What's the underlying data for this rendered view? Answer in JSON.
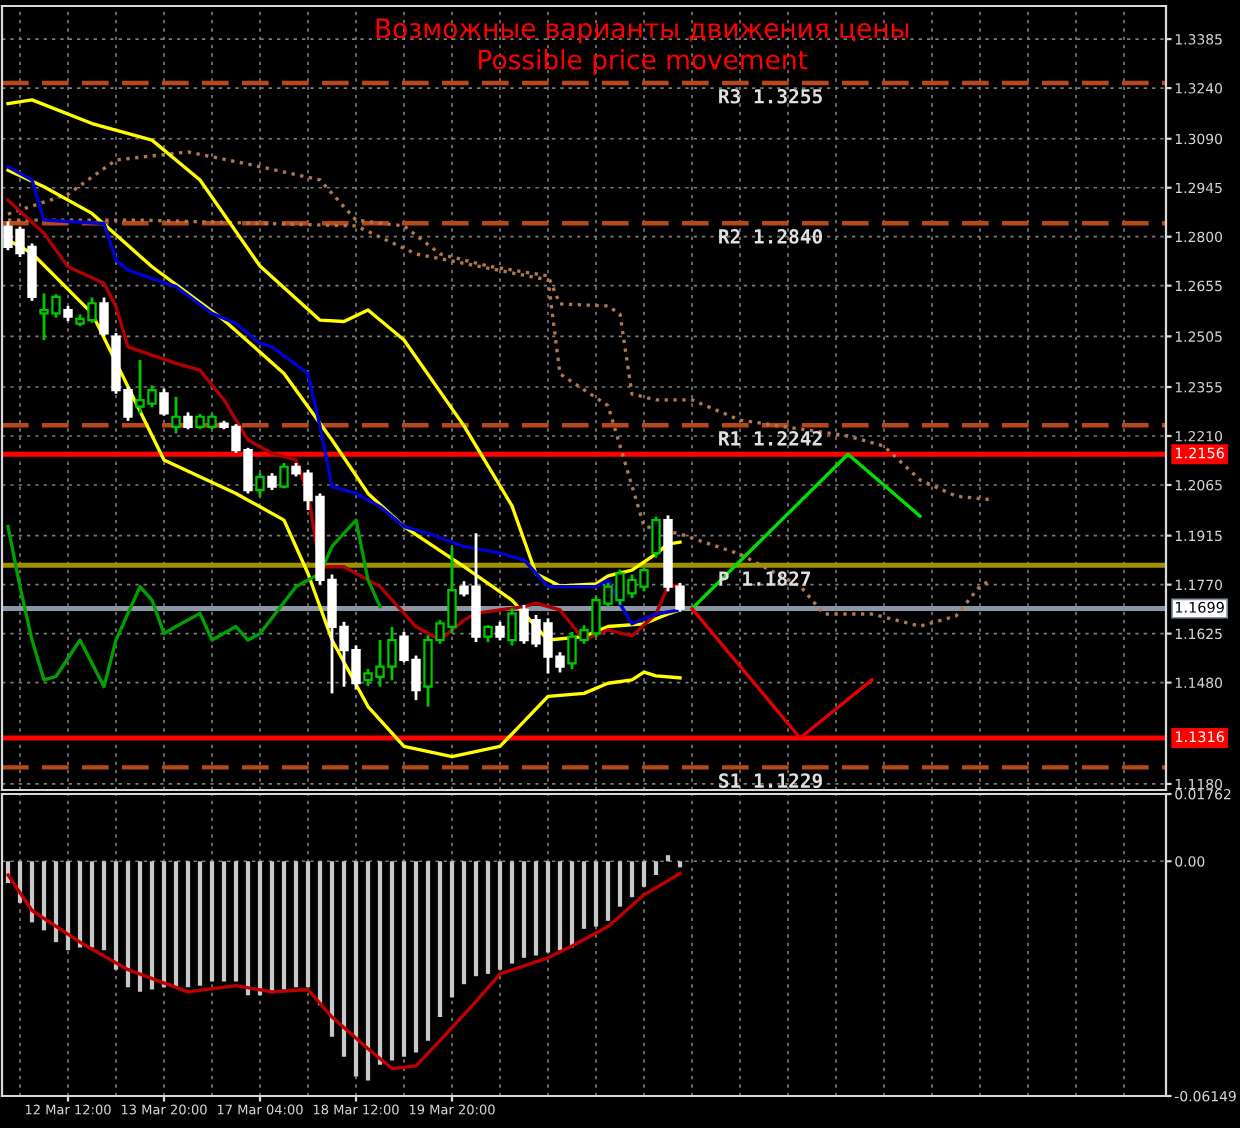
{
  "chart_data": [
    {
      "type": "candlestick",
      "title": "Возможные варианты движения цены",
      "subtitle": "Possible price movement",
      "categories": [
        null,
        null,
        null,
        null,
        null,
        null,
        null,
        null,
        null,
        null,
        null,
        null,
        null,
        null,
        null,
        null,
        null,
        null,
        null,
        null,
        null,
        null,
        null,
        null,
        null,
        null,
        null,
        null,
        null,
        null,
        null,
        null,
        null,
        null,
        null,
        null,
        null,
        null,
        null,
        null,
        null,
        null,
        null,
        null,
        null,
        null,
        null,
        null,
        null,
        null,
        null,
        null,
        null,
        null,
        null,
        null,
        null,
        null,
        null,
        null,
        null,
        null,
        null,
        null,
        null,
        null,
        null,
        null,
        null,
        null,
        null,
        null,
        null,
        null,
        null,
        null,
        null,
        null,
        null,
        null,
        null,
        null,
        null,
        null,
        null,
        null,
        null,
        null,
        null,
        null,
        null,
        null,
        null,
        null,
        null,
        null,
        null
      ],
      "ohlc": [
        [
          1.283,
          1.2845,
          1.276,
          1.277
        ],
        [
          1.282,
          1.283,
          1.274,
          1.2751
        ],
        [
          1.277,
          1.278,
          1.261,
          1.2622
        ],
        [
          1.2573,
          1.2632,
          1.2494,
          1.2583
        ],
        [
          1.2573,
          1.263,
          1.256,
          1.2622
        ],
        [
          1.2583,
          1.2595,
          1.255,
          1.2563
        ],
        [
          1.2543,
          1.257,
          1.2535,
          1.2557
        ],
        [
          1.2553,
          1.262,
          1.2545,
          1.2603
        ],
        [
          1.2603,
          1.262,
          1.2505,
          1.2514
        ],
        [
          1.2504,
          1.2515,
          1.2335,
          1.2346
        ],
        [
          1.2346,
          1.2355,
          1.2255,
          1.2267
        ],
        [
          1.2297,
          1.2435,
          1.2277,
          1.2316
        ],
        [
          1.2306,
          1.236,
          1.2295,
          1.2346
        ],
        [
          1.2336,
          1.235,
          1.227,
          1.2277
        ],
        [
          1.2237,
          1.2326,
          1.2218,
          1.2267
        ],
        [
          1.2267,
          1.228,
          1.223,
          1.2237
        ],
        [
          1.2237,
          1.2275,
          1.223,
          1.2267
        ],
        [
          1.2237,
          1.2275,
          1.223,
          1.2267
        ],
        [
          1.2247,
          1.2255,
          1.223,
          1.2237
        ],
        [
          1.2237,
          1.2245,
          1.216,
          1.2168
        ],
        [
          1.2168,
          1.2175,
          1.204,
          1.205
        ],
        [
          1.205,
          1.21,
          1.203,
          1.2089
        ],
        [
          1.2089,
          1.21,
          1.205,
          1.206
        ],
        [
          1.206,
          1.213,
          1.2055,
          1.2119
        ],
        [
          1.2119,
          1.213,
          1.209,
          1.2099
        ],
        [
          1.2099,
          1.211,
          1.1991,
          1.202
        ],
        [
          1.203,
          1.204,
          1.177,
          1.1784
        ],
        [
          1.1784,
          1.18,
          1.1448,
          1.1645
        ],
        [
          1.1645,
          1.166,
          1.1468,
          1.1576
        ],
        [
          1.1576,
          1.159,
          1.146,
          1.1478
        ],
        [
          1.1487,
          1.152,
          1.147,
          1.1507
        ],
        [
          1.1497,
          1.1606,
          1.1468,
          1.1527
        ],
        [
          1.1527,
          1.1645,
          1.1487,
          1.1606
        ],
        [
          1.1616,
          1.163,
          1.154,
          1.1547
        ],
        [
          1.1547,
          1.156,
          1.1428,
          1.1458
        ],
        [
          1.1468,
          1.162,
          1.1409,
          1.1606
        ],
        [
          1.1606,
          1.1665,
          1.1595,
          1.1655
        ],
        [
          1.1645,
          1.1882,
          1.1626,
          1.1754
        ],
        [
          1.1764,
          1.178,
          1.1735,
          1.1744
        ],
        [
          1.1764,
          1.1922,
          1.16,
          1.1616
        ],
        [
          1.1616,
          1.165,
          1.16,
          1.1645
        ],
        [
          1.1645,
          1.166,
          1.1605,
          1.1616
        ],
        [
          1.1606,
          1.17,
          1.159,
          1.1685
        ],
        [
          1.1695,
          1.171,
          1.1595,
          1.1606
        ],
        [
          1.1665,
          1.168,
          1.1585,
          1.1596
        ],
        [
          1.1655,
          1.167,
          1.1507,
          1.1557
        ],
        [
          1.1557,
          1.157,
          1.151,
          1.1527
        ],
        [
          1.1537,
          1.163,
          1.152,
          1.1616
        ],
        [
          1.1606,
          1.165,
          1.1595,
          1.1635
        ],
        [
          1.1626,
          1.1735,
          1.1615,
          1.1724
        ],
        [
          1.1714,
          1.1775,
          1.1705,
          1.1764
        ],
        [
          1.1724,
          1.1815,
          1.171,
          1.1803
        ],
        [
          1.1744,
          1.18,
          1.173,
          1.1784
        ],
        [
          1.1764,
          1.182,
          1.175,
          1.1813
        ],
        [
          1.1863,
          1.1971,
          1.185,
          1.1961
        ],
        [
          1.1961,
          1.1975,
          1.175,
          1.1764
        ],
        [
          1.1764,
          1.1775,
          1.169,
          1.1699
        ],
        null,
        null,
        null,
        null,
        null,
        null,
        null,
        null,
        null,
        null,
        null,
        null,
        null,
        null,
        null,
        null,
        null,
        null,
        null,
        null,
        null,
        null,
        null,
        null,
        null,
        null,
        null,
        null,
        null,
        null,
        null,
        null,
        null,
        null,
        null,
        null,
        null,
        null,
        null,
        null
      ],
      "colors": [
        "#ffffff",
        "#ffffff",
        "#ffffff",
        "#00c800",
        "#00c800",
        "#ffffff",
        "#00c800",
        "#00c800",
        "#ffffff",
        "#ffffff",
        "#ffffff",
        "#00c800",
        "#00c800",
        "#ffffff",
        "#00c800",
        "#ffffff",
        "#00c800",
        "#00c800",
        "#ffffff",
        "#ffffff",
        "#ffffff",
        "#00c800",
        "#ffffff",
        "#00c800",
        "#ffffff",
        "#ffffff",
        "#ffffff",
        "#ffffff",
        "#ffffff",
        "#ffffff",
        "#00c800",
        "#00c800",
        "#00c800",
        "#ffffff",
        "#ffffff",
        "#00c800",
        "#00c800",
        "#00c800",
        "#ffffff",
        "#ffffff",
        "#00c800",
        "#ffffff",
        "#00c800",
        "#ffffff",
        "#ffffff",
        "#ffffff",
        "#ffffff",
        "#00c800",
        "#00c800",
        "#00c800",
        "#00c800",
        "#00c800",
        "#00c800",
        "#00c800",
        "#00c800",
        "#ffffff",
        "#ffffff",
        null,
        null,
        null,
        null,
        null,
        null,
        null,
        null,
        null,
        null,
        null,
        null,
        null,
        null,
        null,
        null,
        null,
        null,
        null,
        null,
        null,
        null,
        null,
        null,
        null,
        null,
        null,
        null,
        null,
        null,
        null,
        null,
        null,
        null,
        null,
        null,
        null,
        null,
        null,
        null
      ],
      "series": [
        {
          "type": "line",
          "color": "#b07850",
          "line_style": "dotted",
          "values": [
            1.2867,
            null,
            null,
            null,
            null,
            1.2926,
            null,
            null,
            null,
            1.3027,
            null,
            null,
            null,
            null,
            null,
            1.3051,
            null,
            null,
            null,
            null,
            1.3015,
            null,
            null,
            null,
            null,
            null,
            1.2968,
            null,
            null,
            1.2849,
            null,
            null,
            null,
            1.2832,
            null,
            null,
            1.2749,
            null,
            null,
            null,
            1.2713,
            null,
            null,
            null,
            null,
            1.2684,
            1.2601,
            null,
            null,
            null,
            1.2595,
            1.2571,
            1.2334,
            null,
            1.2317,
            null,
            null,
            1.2317,
            null,
            null,
            null,
            1.2257,
            null,
            null,
            null,
            null,
            null,
            null,
            null,
            null,
            1.221,
            null,
            null,
            1.218,
            null,
            null,
            1.208,
            null,
            null,
            1.2032,
            null,
            null,
            1.2021,
            null,
            null,
            null,
            null,
            null,
            null,
            null,
            null,
            null,
            null,
            null,
            null,
            null,
            null
          ]
        },
        {
          "type": "line",
          "color": "#b07850",
          "line_style": "dotted",
          "values": [
            1.2849,
            null,
            null,
            null,
            null,
            null,
            null,
            null,
            null,
            null,
            null,
            1.2849,
            null,
            null,
            null,
            null,
            null,
            null,
            null,
            null,
            null,
            null,
            null,
            null,
            null,
            null,
            null,
            null,
            null,
            1.2832,
            null,
            null,
            null,
            null,
            1.2749,
            null,
            null,
            null,
            null,
            null,
            null,
            null,
            null,
            null,
            null,
            1.2672,
            1.2394,
            null,
            null,
            null,
            1.23,
            null,
            null,
            1.1943,
            null,
            null,
            1.192,
            null,
            null,
            null,
            null,
            1.186,
            null,
            null,
            null,
            null,
            1.1766,
            null,
            1.1683,
            null,
            null,
            null,
            1.1683,
            null,
            null,
            null,
            1.1647,
            null,
            null,
            1.1677,
            null,
            1.1766,
            1.1784,
            null,
            null,
            null,
            null,
            null,
            null,
            null,
            null,
            null,
            null,
            null,
            null,
            null,
            null
          ]
        },
        {
          "type": "line",
          "color": "#ffff00",
          "line_style": "solid",
          "values": [
            1.3194,
            null,
            1.3205,
            null,
            null,
            null,
            null,
            1.3135,
            null,
            null,
            null,
            null,
            1.3086,
            null,
            null,
            null,
            1.2968,
            null,
            null,
            null,
            null,
            1.2713,
            null,
            null,
            null,
            null,
            1.2553,
            null,
            1.2549,
            null,
            1.2583,
            null,
            null,
            1.2494,
            null,
            null,
            null,
            null,
            1.224,
            null,
            null,
            null,
            1.2003,
            null,
            1.1802,
            null,
            1.1766,
            null,
            null,
            1.1772,
            1.1796,
            null,
            1.1813,
            null,
            1.1861,
            1.189,
            1.1896,
            null,
            null,
            null,
            null,
            null,
            null,
            null,
            null,
            null,
            null,
            null,
            null,
            null,
            null,
            null,
            null,
            null,
            null,
            null,
            null,
            null,
            null,
            null,
            null,
            null,
            null,
            null,
            null,
            null,
            null,
            null,
            null,
            null,
            null,
            null,
            null,
            null,
            null,
            null,
            null
          ]
        },
        {
          "type": "line",
          "color": "#ffff00",
          "line_style": "solid",
          "values": [
            1.2997,
            null,
            null,
            1.2948,
            null,
            null,
            null,
            1.2869,
            null,
            null,
            null,
            null,
            1.2711,
            null,
            null,
            null,
            null,
            null,
            1.2553,
            null,
            null,
            null,
            null,
            1.2395,
            null,
            null,
            null,
            1.2198,
            null,
            null,
            1.204,
            null,
            null,
            1.1942,
            null,
            null,
            null,
            null,
            1.1823,
            null,
            null,
            null,
            1.1724,
            null,
            null,
            1.1606,
            null,
            null,
            1.1616,
            null,
            1.1646,
            null,
            null,
            1.1654,
            null,
            1.1683,
            1.1695,
            null,
            null,
            null,
            null,
            null,
            null,
            null,
            null,
            null,
            null,
            null,
            null,
            null,
            null,
            null,
            null,
            null,
            null,
            null,
            null,
            null,
            null,
            null,
            null,
            null,
            null,
            null,
            null,
            null,
            null,
            null,
            null,
            null,
            null,
            null,
            null,
            null,
            null,
            null,
            null
          ]
        },
        {
          "type": "line",
          "color": "#ffff00",
          "line_style": "solid",
          "values": [
            1.279,
            null,
            1.2751,
            null,
            null,
            null,
            null,
            1.2573,
            null,
            null,
            null,
            null,
            null,
            1.2139,
            null,
            null,
            null,
            null,
            null,
            1.204,
            null,
            null,
            null,
            1.1961,
            null,
            1.1803,
            null,
            1.1606,
            null,
            null,
            1.1409,
            null,
            null,
            1.1291,
            null,
            null,
            null,
            1.1261,
            null,
            null,
            null,
            1.1291,
            null,
            null,
            null,
            1.1439,
            null,
            null,
            1.1448,
            null,
            1.1478,
            null,
            1.1488,
            1.1511,
            1.15,
            null,
            1.1494,
            null,
            null,
            null,
            null,
            null,
            null,
            null,
            null,
            null,
            null,
            null,
            null,
            null,
            null,
            null,
            null,
            null,
            null,
            null,
            null,
            null,
            null,
            null,
            null,
            null,
            null,
            null,
            null,
            null,
            null,
            null,
            null,
            null,
            null,
            null,
            null,
            null,
            null,
            null,
            null
          ]
        },
        {
          "type": "line",
          "color": "#b00000",
          "line_style": "solid",
          "values": [
            1.2908,
            null,
            null,
            1.281,
            null,
            1.2711,
            null,
            null,
            1.2662,
            1.2593,
            1.2474,
            null,
            null,
            null,
            1.2425,
            null,
            1.2405,
            null,
            1.2317,
            null,
            1.2198,
            null,
            1.2159,
            null,
            1.2139,
            1.204,
            1.1823,
            null,
            1.1823,
            null,
            null,
            1.1764,
            null,
            null,
            1.1646,
            null,
            1.1606,
            null,
            1.1665,
            1.1685,
            null,
            null,
            null,
            1.1705,
            1.1715,
            null,
            1.1695,
            null,
            1.1606,
            null,
            1.1636,
            null,
            1.1618,
            null,
            1.1683,
            1.1766,
            1.1766,
            null,
            null,
            null,
            null,
            null,
            null,
            null,
            null,
            null,
            null,
            null,
            null,
            null,
            null,
            null,
            null,
            null,
            null,
            null,
            null,
            null,
            null,
            null,
            null,
            null,
            null,
            null,
            null,
            null,
            null,
            null,
            null,
            null,
            null,
            null,
            null,
            null,
            null,
            null,
            null
          ]
        },
        {
          "type": "line",
          "color": "#0000d0",
          "line_style": "solid",
          "values": [
            1.3007,
            null,
            1.2968,
            1.2849,
            null,
            null,
            null,
            null,
            1.2839,
            1.2731,
            1.2701,
            null,
            null,
            null,
            1.2652,
            null,
            null,
            1.2573,
            null,
            1.2543,
            null,
            1.2484,
            1.2474,
            null,
            null,
            1.2395,
            1.2238,
            1.206,
            null,
            1.204,
            null,
            1.2001,
            null,
            1.1942,
            null,
            1.1922,
            null,
            null,
            1.1883,
            null,
            null,
            1.1863,
            null,
            1.1843,
            null,
            1.1764,
            null,
            null,
            null,
            1.1764,
            1.1784,
            1.1713,
            1.1654,
            null,
            1.1683,
            null,
            1.1695,
            null,
            null,
            null,
            null,
            null,
            null,
            null,
            null,
            null,
            null,
            null,
            null,
            null,
            null,
            null,
            null,
            null,
            null,
            null,
            null,
            null,
            null,
            null,
            null,
            null,
            null,
            null,
            null,
            null,
            null,
            null,
            null,
            null,
            null,
            null,
            null,
            null,
            null,
            null,
            null
          ]
        },
        {
          "type": "line",
          "color": "#00a000",
          "line_style": "solid",
          "values": [
            1.1942,
            1.1764,
            1.1606,
            1.1488,
            1.1498,
            null,
            1.1606,
            null,
            1.1468,
            1.1606,
            null,
            1.1764,
            1.1724,
            1.1625,
            1.1646,
            null,
            1.1685,
            1.1606,
            null,
            1.1646,
            1.1606,
            1.1625,
            null,
            null,
            1.1764,
            null,
            1.1803,
            1.1883,
            null,
            1.1961,
            1.1784,
            1.1705,
            null,
            null,
            null,
            null,
            null,
            null,
            null,
            null,
            null,
            null,
            null,
            null,
            null,
            null,
            null,
            null,
            null,
            null,
            null,
            null,
            null,
            null,
            null,
            null,
            null,
            null,
            null,
            null,
            null,
            null,
            null,
            null,
            null,
            null,
            null,
            null,
            null,
            null,
            null,
            null,
            null,
            null,
            null,
            null,
            null,
            null,
            null,
            null,
            null,
            null,
            null,
            null,
            null,
            null,
            null,
            null,
            null,
            null,
            null,
            null,
            null,
            null,
            null,
            null,
            null
          ]
        },
        {
          "type": "line",
          "color": "#00e000",
          "line_style": "solid",
          "values": [
            null,
            null,
            null,
            null,
            null,
            null,
            null,
            null,
            null,
            null,
            null,
            null,
            null,
            null,
            null,
            null,
            null,
            null,
            null,
            null,
            null,
            null,
            null,
            null,
            null,
            null,
            null,
            null,
            null,
            null,
            null,
            null,
            null,
            null,
            null,
            null,
            null,
            null,
            null,
            null,
            null,
            null,
            null,
            null,
            null,
            null,
            null,
            null,
            null,
            null,
            null,
            null,
            null,
            null,
            null,
            null,
            null,
            1.1699,
            null,
            null,
            null,
            null,
            null,
            null,
            null,
            null,
            null,
            null,
            null,
            null,
            1.2156,
            null,
            null,
            null,
            null,
            null,
            1.1973,
            null,
            null,
            null,
            null,
            null,
            null,
            null,
            null,
            null,
            null,
            null,
            null,
            null,
            null,
            null,
            null,
            null,
            null,
            null,
            null
          ]
        },
        {
          "type": "line",
          "color": "#e00000",
          "line_style": "solid",
          "values": [
            null,
            null,
            null,
            null,
            null,
            null,
            null,
            null,
            null,
            null,
            null,
            null,
            null,
            null,
            null,
            null,
            null,
            null,
            null,
            null,
            null,
            null,
            null,
            null,
            null,
            null,
            null,
            null,
            null,
            null,
            null,
            null,
            null,
            null,
            null,
            null,
            null,
            null,
            null,
            null,
            null,
            null,
            null,
            null,
            null,
            null,
            null,
            null,
            null,
            null,
            null,
            null,
            null,
            null,
            null,
            null,
            null,
            1.1699,
            null,
            null,
            null,
            null,
            null,
            null,
            null,
            null,
            1.1316,
            null,
            null,
            null,
            null,
            null,
            1.1488,
            null,
            null,
            null,
            null,
            null,
            null,
            null,
            null,
            null,
            null,
            null,
            null,
            null,
            null,
            null,
            null,
            null,
            null,
            null,
            null,
            null,
            null,
            null,
            null
          ]
        }
      ],
      "ref_lines": [
        {
          "axis": "y",
          "value": 1.3255,
          "label": "R3 1.3255",
          "color": "#b84818",
          "line_style": "dashed"
        },
        {
          "axis": "y",
          "value": 1.284,
          "label": "R2 1.2840",
          "color": "#b84818",
          "line_style": "dashed"
        },
        {
          "axis": "y",
          "value": 1.2242,
          "label": "R1 1.2242",
          "color": "#b84818",
          "line_style": "dashed"
        },
        {
          "axis": "y",
          "value": 1.1827,
          "label": "P 1.1827",
          "color": "#a09000",
          "line_style": "solid"
        },
        {
          "axis": "y",
          "value": 1.1229,
          "label": "S1 1.1229",
          "color": "#b84818",
          "line_style": "dashed"
        },
        {
          "axis": "y",
          "value": 1.2156,
          "label": "1.2156",
          "color": "#ff0000",
          "line_style": "solid"
        },
        {
          "axis": "y",
          "value": 1.1316,
          "label": "1.1316",
          "color": "#ff0000",
          "line_style": "solid"
        },
        {
          "axis": "y",
          "value": 1.1699,
          "label": "1.1699",
          "color": "#8a96a4",
          "line_style": "solid"
        }
      ],
      "ylim": [
        1.1162,
        1.3483
      ],
      "yticks": [
        {
          "value": 1.3385,
          "label": "1.3385"
        },
        {
          "value": 1.324,
          "label": "1.3240"
        },
        {
          "value": 1.309,
          "label": "1.3090"
        },
        {
          "value": 1.2945,
          "label": "1.2945"
        },
        {
          "value": 1.28,
          "label": "1.2800"
        },
        {
          "value": 1.2655,
          "label": "1.2655"
        },
        {
          "value": 1.2505,
          "label": "1.2505"
        },
        {
          "value": 1.2355,
          "label": "1.2355"
        },
        {
          "value": 1.221,
          "label": "1.2210"
        },
        {
          "value": 1.2065,
          "label": "1.2065"
        },
        {
          "value": 1.1915,
          "label": "1.1915"
        },
        {
          "value": 1.177,
          "label": "1.1770"
        },
        {
          "value": 1.1625,
          "label": "1.1625"
        },
        {
          "value": 1.148,
          "label": "1.1480"
        },
        {
          "value": 1.118,
          "label": "1.1180"
        }
      ],
      "grid": true,
      "tick_labels": "y"
    },
    {
      "type": "bar",
      "categories": [
        null,
        null,
        null,
        null,
        null,
        "12 Mar 12:00",
        null,
        null,
        null,
        null,
        null,
        null,
        null,
        "13 Mar 20:00",
        null,
        null,
        null,
        null,
        null,
        null,
        null,
        "17 Mar 04:00",
        null,
        null,
        null,
        null,
        null,
        null,
        null,
        "18 Mar 12:00",
        null,
        null,
        null,
        null,
        null,
        null,
        null,
        "19 Mar 20:00",
        null,
        null,
        null,
        null,
        null,
        null,
        null,
        null,
        null,
        null,
        null,
        null,
        null,
        null,
        null,
        null,
        null,
        null,
        null,
        null,
        null,
        null,
        null,
        null,
        null,
        null,
        null,
        null,
        null,
        null,
        null,
        null,
        null,
        null,
        null,
        null,
        null,
        null,
        null,
        null,
        null,
        null,
        null,
        null,
        null,
        null,
        null,
        null,
        null,
        null,
        null,
        null,
        null,
        null,
        null,
        null,
        null,
        null,
        null
      ],
      "series": [
        {
          "type": "bar",
          "color": "#c8c8c8",
          "values": [
            -0.0057,
            -0.0109,
            -0.016,
            -0.0181,
            -0.0212,
            -0.0233,
            -0.0226,
            -0.0226,
            -0.0233,
            -0.0284,
            -0.033,
            -0.0342,
            -0.0336,
            -0.033,
            -0.033,
            -0.033,
            -0.0326,
            -0.0315,
            -0.0315,
            -0.0315,
            -0.0351,
            -0.0351,
            -0.0346,
            -0.0336,
            -0.033,
            -0.033,
            -0.0377,
            -0.046,
            -0.0512,
            -0.0564,
            -0.0574,
            -0.0533,
            -0.0522,
            -0.0512,
            -0.0501,
            -0.047,
            -0.0408,
            -0.0357,
            -0.0322,
            -0.0301,
            -0.0295,
            -0.0284,
            -0.0268,
            -0.0253,
            -0.0247,
            -0.0239,
            -0.0233,
            -0.0226,
            -0.0177,
            -0.0171,
            -0.0156,
            -0.0119,
            -0.0094,
            -0.0067,
            -0.0036,
            0.0016,
            -0.0016,
            null,
            null,
            null,
            null,
            null,
            null,
            null,
            null,
            null,
            null,
            null,
            null,
            null,
            null,
            null,
            null,
            null,
            null,
            null,
            null,
            null,
            null,
            null,
            null,
            null,
            null,
            null,
            null,
            null,
            null,
            null,
            null,
            null,
            null,
            null,
            null,
            null,
            null,
            null,
            null
          ]
        },
        {
          "type": "line",
          "color": "#c00000",
          "line_style": "solid",
          "values": [
            -0.0036,
            null,
            -0.0129,
            null,
            null,
            null,
            -0.0212,
            null,
            null,
            null,
            -0.0284,
            null,
            null,
            null,
            null,
            -0.0342,
            null,
            null,
            null,
            -0.0326,
            null,
            null,
            -0.0342,
            null,
            null,
            -0.0336,
            null,
            -0.0408,
            null,
            null,
            -0.0491,
            null,
            -0.0543,
            null,
            -0.0536,
            null,
            -0.047,
            null,
            null,
            -0.0367,
            null,
            -0.0295,
            null,
            null,
            null,
            -0.0253,
            null,
            -0.0222,
            null,
            null,
            -0.0171,
            null,
            null,
            -0.0088,
            null,
            null,
            -0.0032,
            null,
            null,
            null,
            null,
            null,
            null,
            null,
            null,
            null,
            null,
            null,
            null,
            null,
            null,
            null,
            null,
            null,
            null,
            null,
            null,
            null,
            null,
            null,
            null,
            null,
            null,
            null,
            null,
            null,
            null,
            null,
            null,
            null,
            null,
            null,
            null,
            null,
            null,
            null,
            null
          ]
        }
      ],
      "ylim": [
        -0.06149,
        0.01762
      ],
      "yticks": [
        {
          "value": 0.01762,
          "label": "0.01762"
        },
        {
          "value": 0,
          "label": "0.00"
        },
        {
          "value": -0.06149,
          "label": "-0.06149"
        }
      ],
      "grid": true
    }
  ]
}
